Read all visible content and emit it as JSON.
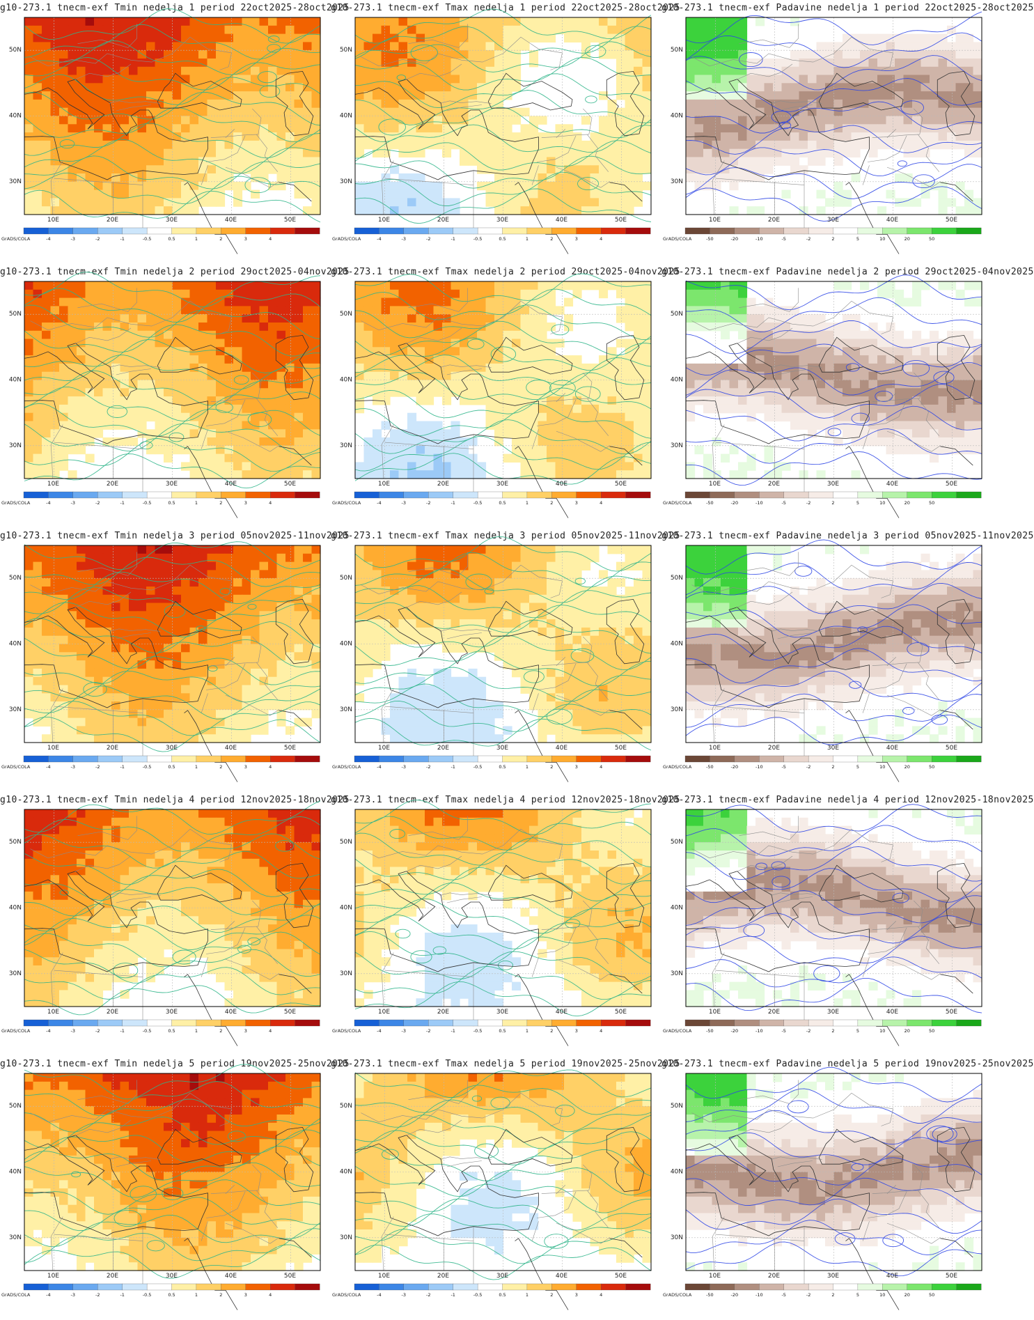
{
  "maps": [
    {
      "title": "g10-273.1 tnecm-exf Tmin nedelja 1 period 22oct2025-28oct2025",
      "variable": "Tmin",
      "week": 1
    },
    {
      "title": "g10-273.1 tnecm-exf Tmax nedelja 1 period 22oct2025-28oct2025",
      "variable": "Tmax",
      "week": 1
    },
    {
      "title": "g10-273.1 tnecm-exf Padavine nedelja 1 period 22oct2025-28oct2025",
      "variable": "Padavine",
      "week": 1
    },
    {
      "title": "g10-273.1 tnecm-exf Tmin nedelja 2 period 29oct2025-04nov2025",
      "variable": "Tmin",
      "week": 2
    },
    {
      "title": "g10-273.1 tnecm-exf Tmax nedelja 2 period 29oct2025-04nov2025",
      "variable": "Tmax",
      "week": 2
    },
    {
      "title": "g10-273.1 tnecm-exf Padavine nedelja 2 period 29oct2025-04nov2025",
      "variable": "Padavine",
      "week": 2
    },
    {
      "title": "g10-273.1 tnecm-exf Tmin nedelja 3 period 05nov2025-11nov2025",
      "variable": "Tmin",
      "week": 3
    },
    {
      "title": "g10-273.1 tnecm-exf Tmax nedelja 3 period 05nov2025-11nov2025",
      "variable": "Tmax",
      "week": 3
    },
    {
      "title": "g10-273.1 tnecm-exf Padavine nedelja 3 period 05nov2025-11nov2025",
      "variable": "Padavine",
      "week": 3
    },
    {
      "title": "g10-273.1 tnecm-exf Tmin nedelja 4 period 12nov2025-18nov2025",
      "variable": "Tmin",
      "week": 4
    },
    {
      "title": "g10-273.1 tnecm-exf Tmax nedelja 4 period 12nov2025-18nov2025",
      "variable": "Tmax",
      "week": 4
    },
    {
      "title": "g10-273.1 tnecm-exf Padavine nedelja 4 period 12nov2025-18nov2025",
      "variable": "Padavine",
      "week": 4
    },
    {
      "title": "g10-273.1 tnecm-exf Tmin nedelja 5 period 19nov2025-25nov2025",
      "variable": "Tmin",
      "week": 5
    },
    {
      "title": "g10-273.1 tnecm-exf Tmax nedelja 5 period 19nov2025-25nov2025",
      "variable": "Tmax",
      "week": 5
    },
    {
      "title": "g10-273.1 tnecm-exf Padavine nedelja 5 period 19nov2025-25nov2025",
      "variable": "Padavine",
      "week": 5
    }
  ],
  "axes": {
    "lon_labels": [
      "10E",
      "20E",
      "30E",
      "40E",
      "50E"
    ],
    "lon_values": [
      10,
      20,
      30,
      40,
      50
    ],
    "lat_labels": [
      "30N",
      "40N",
      "50N"
    ],
    "lat_values": [
      30,
      40,
      50
    ],
    "lon_range": [
      5,
      55
    ],
    "lat_range": [
      25,
      55
    ]
  },
  "colorbars": {
    "temp": {
      "credit": "GrADS/COLA",
      "labels": [
        "-4",
        "-3",
        "-2",
        "-1",
        "-0.5",
        "0.5",
        "1",
        "2",
        "3",
        "4"
      ],
      "colors": [
        "#1660d6",
        "#3c86e6",
        "#6aa9f0",
        "#9ccaf7",
        "#cde6fb",
        "#ffffff",
        "#fff0a6",
        "#ffd066",
        "#ffac30",
        "#f26200",
        "#d92a0c",
        "#a50c0c"
      ]
    },
    "precip": {
      "credit": "GrADS/COLA",
      "labels": [
        "-50",
        "-20",
        "-10",
        "-5",
        "-2",
        "2",
        "5",
        "10",
        "20",
        "50"
      ],
      "colors": [
        "#6b4736",
        "#8e6a58",
        "#b08f80",
        "#cfb4a8",
        "#e9d7cf",
        "#f6ece7",
        "#ffffff",
        "#e6fbe0",
        "#b7f3aa",
        "#7ce66d",
        "#3cd23c",
        "#1aa81a"
      ]
    }
  }
}
